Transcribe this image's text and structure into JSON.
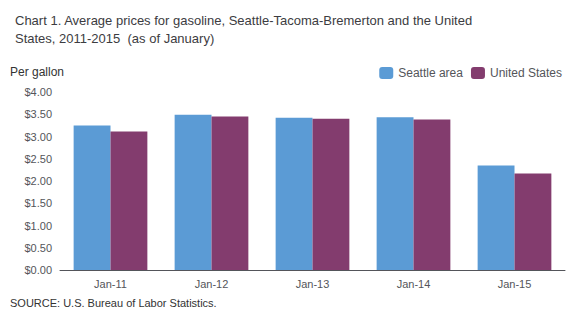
{
  "chart_data": {
    "type": "bar",
    "title": "Chart 1. Average prices for gasoline, Seattle-Tacoma-Bremerton and the United\nStates, 2011-2015  (as of January)",
    "ylabel": "Per gallon",
    "categories": [
      "Jan-11",
      "Jan-12",
      "Jan-13",
      "Jan-14",
      "Jan-15"
    ],
    "series": [
      {
        "name": "Seattle area",
        "color": "#5B9BD5",
        "values": [
          3.25,
          3.49,
          3.42,
          3.43,
          2.35
        ]
      },
      {
        "name": "United States",
        "color": "#833C6E",
        "values": [
          3.11,
          3.45,
          3.4,
          3.38,
          2.17
        ]
      }
    ],
    "ylim": [
      0.0,
      4.0
    ],
    "yticks": [
      {
        "value": 0.0,
        "label": "$0.00"
      },
      {
        "value": 0.5,
        "label": "$0.50"
      },
      {
        "value": 1.0,
        "label": "$1.00"
      },
      {
        "value": 1.5,
        "label": "$1.50"
      },
      {
        "value": 2.0,
        "label": "$2.00"
      },
      {
        "value": 2.5,
        "label": "$2.50"
      },
      {
        "value": 3.0,
        "label": "$3.00"
      },
      {
        "value": 3.5,
        "label": "$3.50"
      },
      {
        "value": 4.0,
        "label": "$4.00"
      }
    ],
    "annotations": [
      "SOURCE: U.S. Bureau of Labor Statistics."
    ],
    "grid": false,
    "legend": "upper right"
  }
}
